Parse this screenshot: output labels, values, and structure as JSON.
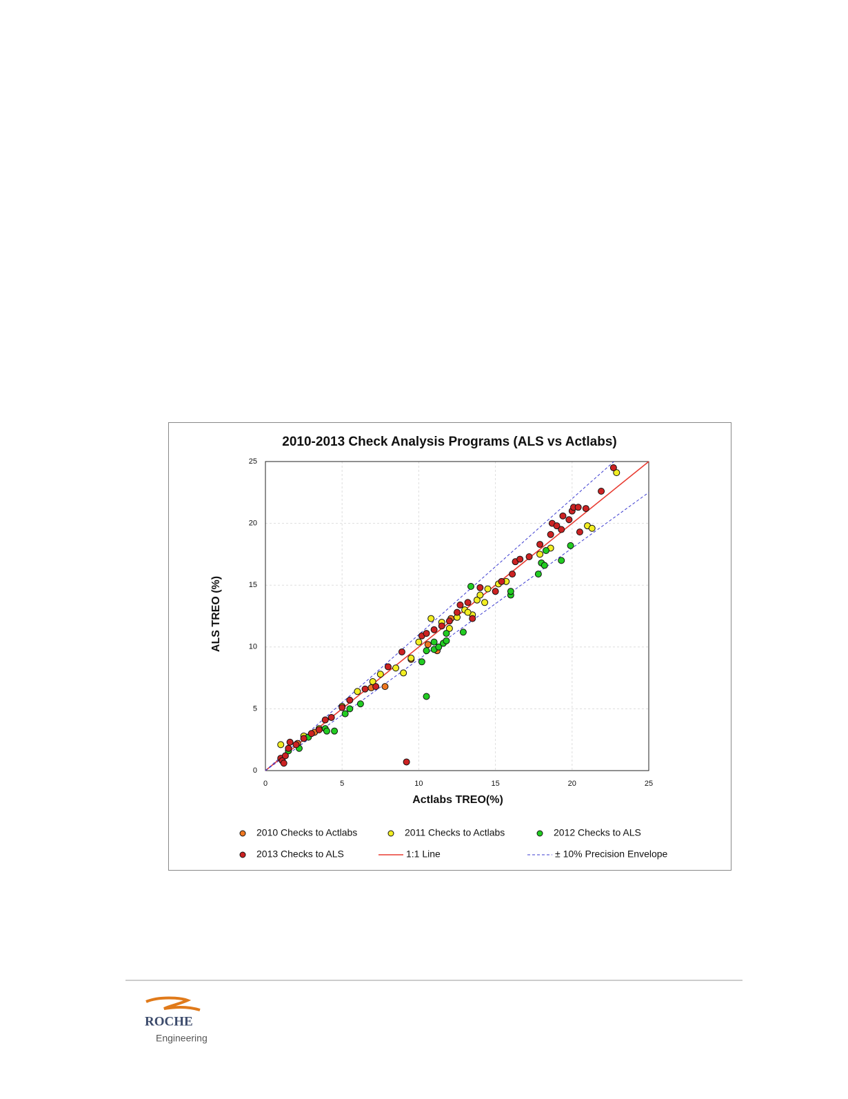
{
  "chart_data": {
    "type": "scatter",
    "title": "2010-2013 Check Analysis Programs (ALS vs Actlabs)",
    "x_label": "Actlabs TREO(%)",
    "y_label": "ALS TREO (%)",
    "xlim": [
      0,
      25
    ],
    "ylim": [
      0,
      25
    ],
    "xticks": [
      0,
      5,
      10,
      15,
      20,
      25
    ],
    "yticks": [
      0,
      5,
      10,
      15,
      20,
      25
    ],
    "grid": true,
    "legend": "bottom",
    "series": [
      {
        "name": "2010 Checks to Actlabs",
        "color": "#ee7722",
        "x": [
          7.8,
          9.5,
          11.2,
          10.6,
          12.1,
          6.9,
          3.2,
          2.1
        ],
        "values": [
          6.8,
          9.0,
          9.7,
          10.2,
          12.3,
          6.7,
          3.1,
          2.2
        ]
      },
      {
        "name": "2011 Checks to Actlabs",
        "color": "#f2ee22",
        "x": [
          1.0,
          2.5,
          3.5,
          5.0,
          6.0,
          7.0,
          7.5,
          8.5,
          9.0,
          9.5,
          10.0,
          10.8,
          12.0,
          12.5,
          13.0,
          13.5,
          13.8,
          14.0,
          14.3,
          14.5,
          15.2,
          15.7,
          17.9,
          18.6,
          21.0,
          21.3,
          22.9,
          11.5,
          13.2
        ],
        "values": [
          2.1,
          2.8,
          3.4,
          5.2,
          6.4,
          7.2,
          7.8,
          8.3,
          7.9,
          9.1,
          10.4,
          12.3,
          11.5,
          12.4,
          13.0,
          12.6,
          13.8,
          14.2,
          13.6,
          14.7,
          15.1,
          15.3,
          17.5,
          18.0,
          19.8,
          19.6,
          24.1,
          12.0,
          12.8
        ]
      },
      {
        "name": "2012 Checks to ALS",
        "color": "#22cc22",
        "x": [
          1.5,
          2.2,
          2.8,
          3.9,
          4.0,
          4.5,
          5.2,
          5.5,
          6.2,
          10.2,
          10.5,
          10.5,
          11.0,
          11.3,
          11.6,
          11.8,
          11.8,
          12.9,
          13.4,
          16.0,
          16.0,
          17.8,
          18.0,
          18.2,
          18.3,
          19.3,
          19.9,
          11.0
        ],
        "values": [
          1.6,
          1.8,
          2.7,
          3.4,
          3.2,
          3.2,
          4.6,
          5.0,
          5.4,
          8.8,
          6.0,
          9.7,
          9.8,
          10.0,
          10.3,
          10.5,
          11.1,
          11.2,
          14.9,
          14.2,
          14.5,
          15.9,
          16.8,
          16.6,
          17.8,
          17.0,
          18.2,
          10.4
        ]
      },
      {
        "name": "2013 Checks to ALS",
        "color": "#cc2222",
        "x": [
          1.0,
          1.1,
          1.2,
          1.3,
          1.5,
          1.6,
          2.0,
          2.5,
          3.0,
          3.5,
          3.9,
          4.3,
          5.0,
          5.5,
          6.5,
          7.2,
          8.0,
          8.9,
          9.2,
          10.2,
          10.5,
          11.0,
          11.5,
          12.0,
          12.5,
          12.7,
          13.2,
          13.5,
          14.0,
          15.0,
          15.4,
          16.1,
          16.3,
          16.6,
          17.2,
          17.9,
          18.6,
          18.7,
          19.0,
          19.3,
          19.4,
          19.8,
          20.0,
          20.1,
          20.4,
          20.5,
          20.9,
          21.9,
          22.7
        ],
        "values": [
          1.0,
          0.8,
          0.6,
          1.2,
          1.8,
          2.3,
          2.1,
          2.6,
          3.0,
          3.3,
          4.1,
          4.3,
          5.1,
          5.7,
          6.6,
          6.8,
          8.4,
          9.6,
          0.7,
          10.9,
          11.1,
          11.4,
          11.7,
          12.1,
          12.8,
          13.4,
          13.6,
          12.3,
          14.8,
          14.5,
          15.3,
          15.9,
          16.9,
          17.1,
          17.3,
          18.3,
          19.1,
          20.0,
          19.8,
          19.5,
          20.6,
          20.3,
          21.0,
          21.3,
          21.3,
          19.3,
          21.2,
          22.6,
          24.5
        ]
      },
      {
        "name": "1:1 Line",
        "color": "#e83a30",
        "type": "line",
        "x": [
          0,
          25
        ],
        "values": [
          0,
          25
        ]
      },
      {
        "name": "± 10% Precision Envelope",
        "color": "#3b3bd0",
        "type": "line",
        "dashed": true,
        "x": [
          0,
          22.73,
          null,
          0,
          25
        ],
        "values": [
          0,
          25,
          null,
          0,
          22.5
        ]
      }
    ]
  },
  "footer": {
    "logo_name": "ROCHE",
    "logo_subtitle": "Engineering"
  }
}
